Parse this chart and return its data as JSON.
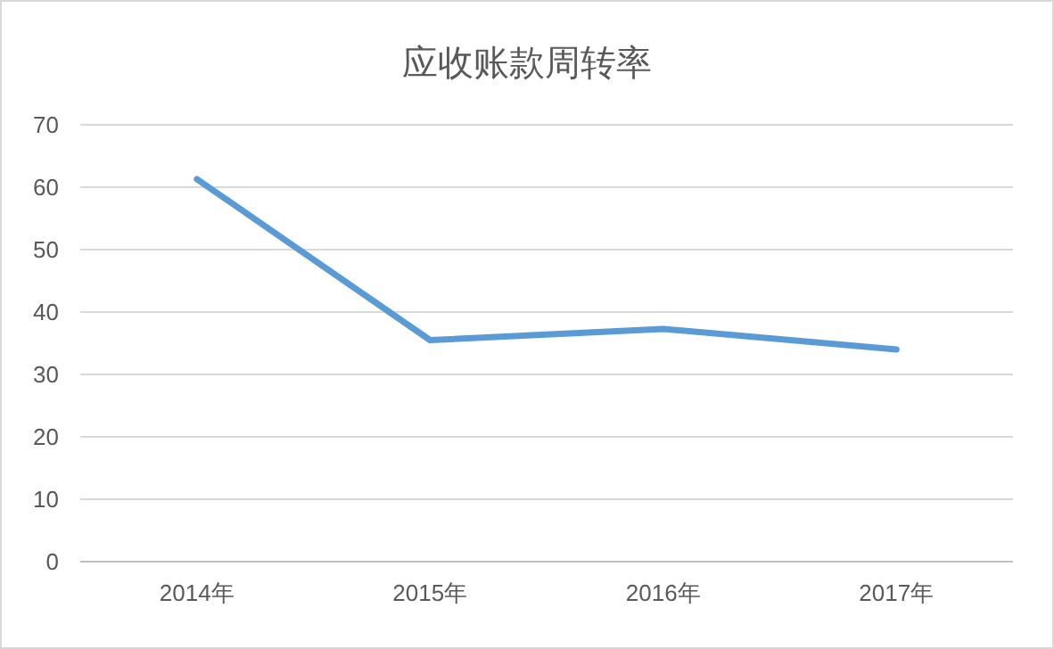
{
  "chart_data": {
    "type": "line",
    "title": "应收账款周转率",
    "categories": [
      "2014年",
      "2015年",
      "2016年",
      "2017年"
    ],
    "values": [
      61.3,
      35.5,
      37.3,
      34.0
    ],
    "color": "#5b9bd5",
    "ylim": [
      0,
      70
    ],
    "yticks": [
      0,
      10,
      20,
      30,
      40,
      50,
      60,
      70
    ],
    "grid": "y"
  }
}
